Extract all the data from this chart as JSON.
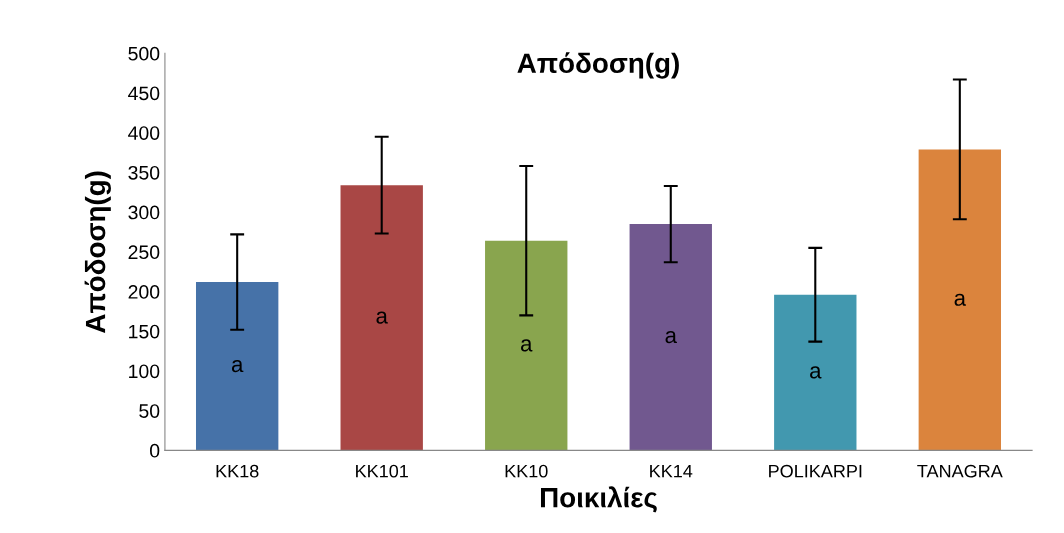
{
  "chart_data": {
    "type": "bar",
    "title": "Απόδοση(g)",
    "xlabel": "Ποικιλίες",
    "ylabel": "Απόδοση(g)",
    "categories": [
      "KK18",
      "KK101",
      "KK10",
      "KK14",
      "POLIKARPI",
      "TANAGRA"
    ],
    "values": [
      212,
      334,
      264,
      285,
      196,
      379
    ],
    "colors": [
      "#4672a8",
      "#a94745",
      "#89a54e",
      "#71588f",
      "#4298af",
      "#db843d"
    ],
    "errors": [
      60,
      61,
      94,
      48,
      59,
      88
    ],
    "ylim": [
      0,
      500
    ],
    "yticks": [
      0,
      50,
      100,
      150,
      200,
      250,
      300,
      350,
      400,
      450,
      500
    ],
    "grid": false,
    "legend": false,
    "annotations": [
      "a",
      "a",
      "a",
      "a",
      "a",
      "a"
    ]
  }
}
